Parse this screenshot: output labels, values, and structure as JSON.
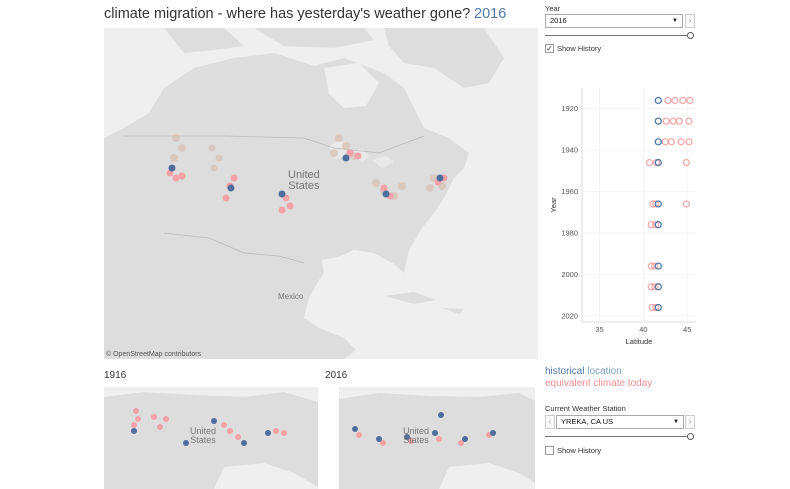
{
  "title": "climate migration - where has yesterday's weather gone?",
  "title_year": "2016",
  "main_map": {
    "country_label_line1": "United",
    "country_label_line2": "States",
    "mexico_label": "Mexico",
    "attribution": "© OpenStreetMap contributors"
  },
  "small_maps": [
    {
      "title": "1916",
      "country_label_line1": "United",
      "country_label_line2": "States"
    },
    {
      "title": "2016",
      "country_label_line1": "United",
      "country_label_line2": "States"
    }
  ],
  "controls": {
    "year_label": "Year",
    "year_value": "2016",
    "show_history_top": "Show History",
    "station_label": "Current Weather Station",
    "station_value": "YREKA, CA US",
    "show_history_bottom": "Show History"
  },
  "legend": {
    "historical_word": "historical",
    "location_word": " location",
    "today": "equivalent climate today"
  },
  "colors": {
    "historical": "#4e79a7",
    "today": "#f28e8e",
    "map_bg": "#efefef",
    "land": "#dcdcdc"
  },
  "chart_data": {
    "type": "scatter",
    "xlabel": "Latitude",
    "ylabel": "Year",
    "xlim": [
      33,
      46
    ],
    "ylim": [
      1910,
      2023
    ],
    "xticks": [
      35,
      40,
      45
    ],
    "yticks": [
      1920,
      1940,
      1960,
      1980,
      2000,
      2020
    ],
    "series": [
      {
        "name": "historical location",
        "points": [
          [
            41.7,
            1916
          ],
          [
            41.7,
            1926
          ],
          [
            41.7,
            1936
          ],
          [
            41.7,
            1946
          ],
          [
            41.7,
            1966
          ],
          [
            41.7,
            1976
          ],
          [
            41.7,
            1996
          ],
          [
            41.7,
            2006
          ],
          [
            41.7,
            2016
          ]
        ]
      },
      {
        "name": "equivalent climate today",
        "points": [
          [
            42.8,
            1916
          ],
          [
            43.6,
            1916
          ],
          [
            44.5,
            1916
          ],
          [
            45.3,
            1916
          ],
          [
            42.6,
            1926
          ],
          [
            43.4,
            1926
          ],
          [
            44.1,
            1926
          ],
          [
            45.2,
            1926
          ],
          [
            42.5,
            1936
          ],
          [
            43.2,
            1936
          ],
          [
            44.3,
            1936
          ],
          [
            45.2,
            1936
          ],
          [
            40.7,
            1946
          ],
          [
            41.5,
            1946
          ],
          [
            44.9,
            1946
          ],
          [
            41.1,
            1966
          ],
          [
            41.4,
            1966
          ],
          [
            44.9,
            1966
          ],
          [
            40.9,
            1976
          ],
          [
            41.4,
            1976
          ],
          [
            40.9,
            1996
          ],
          [
            41.3,
            1996
          ],
          [
            40.9,
            2006
          ],
          [
            41.3,
            2006
          ],
          [
            41.0,
            2016
          ],
          [
            41.4,
            2016
          ]
        ]
      }
    ]
  }
}
